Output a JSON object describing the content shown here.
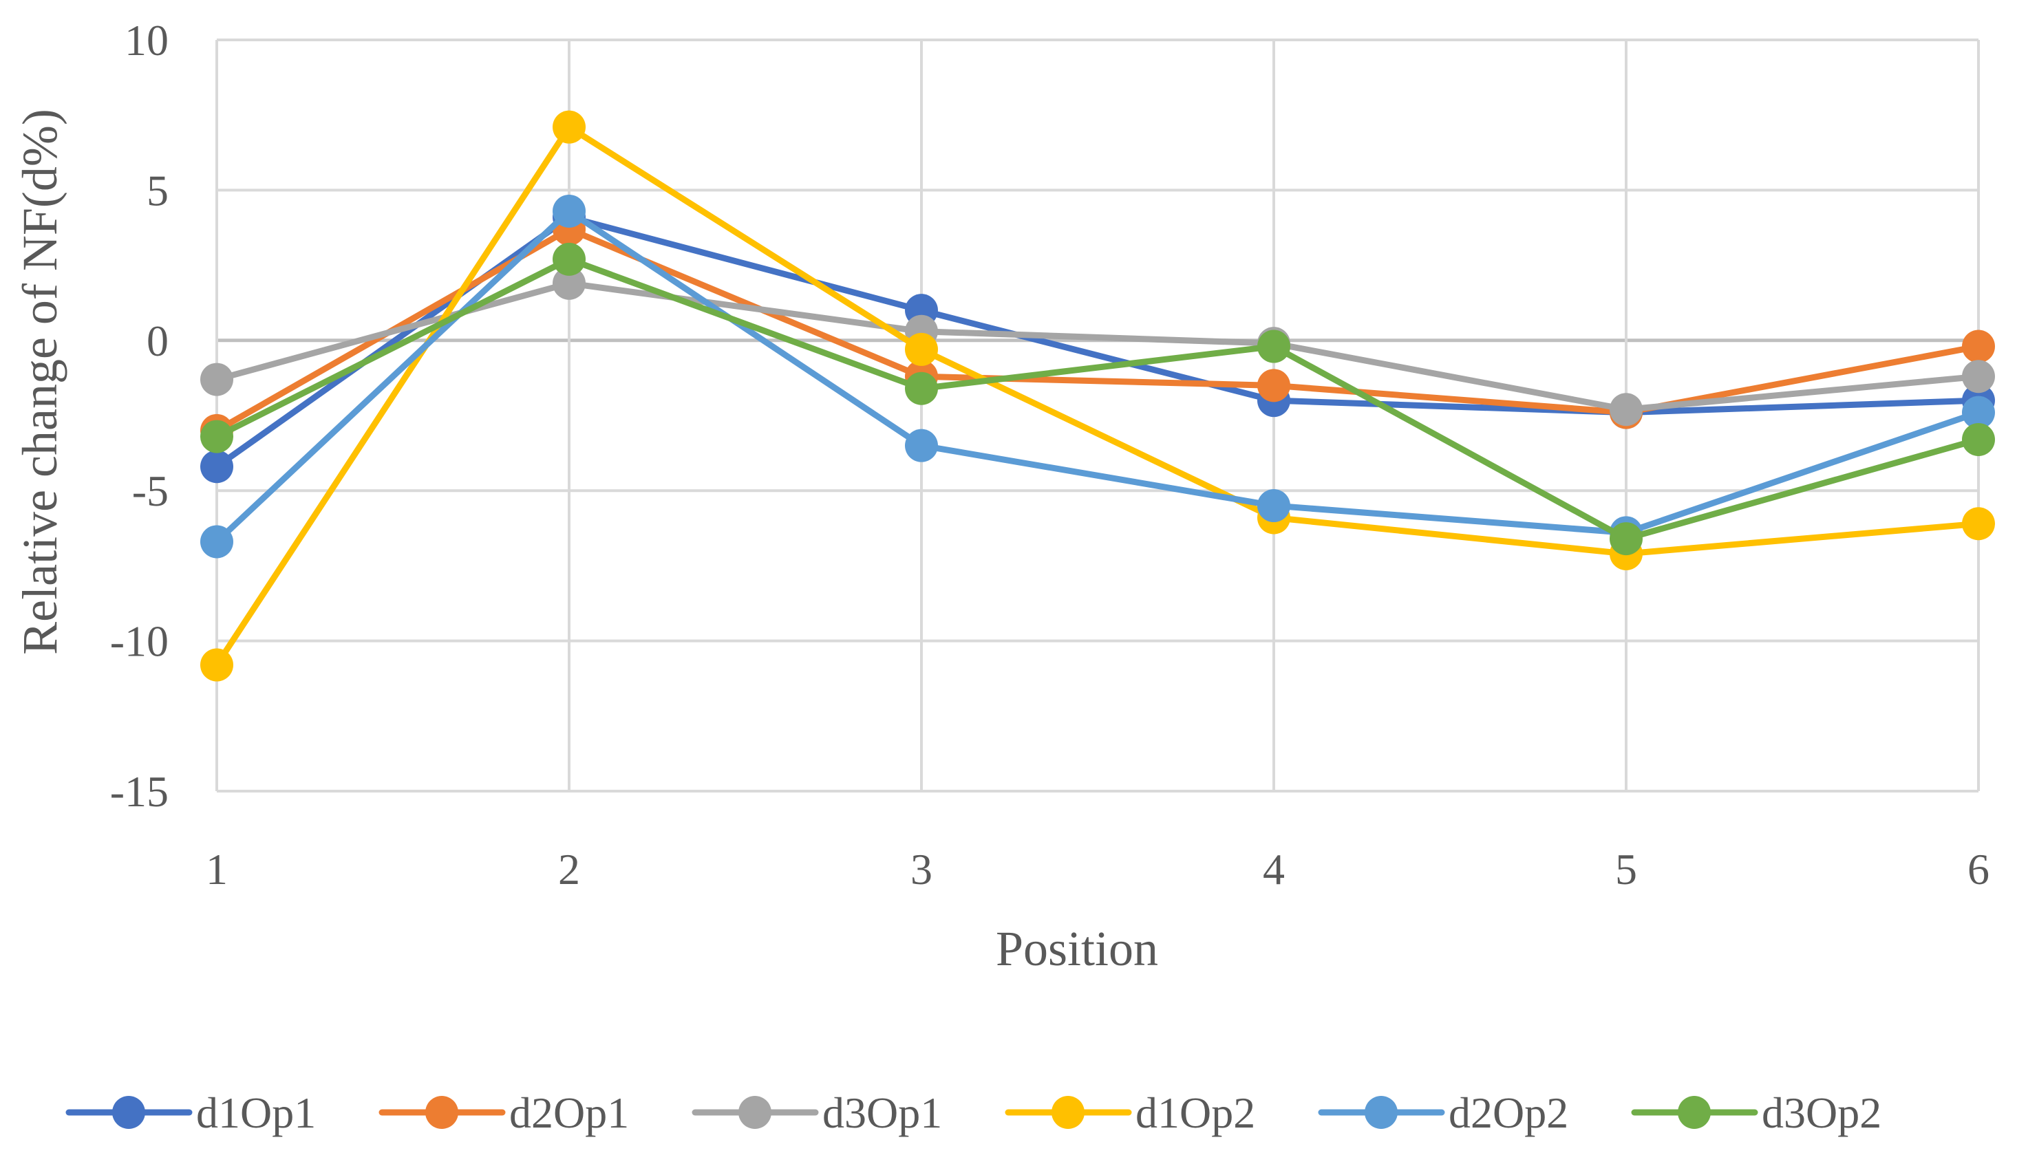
{
  "chart_data": {
    "type": "line",
    "title": "",
    "xlabel": "Position",
    "ylabel": "Relative change of NF(d%)",
    "x": [
      1,
      2,
      3,
      4,
      5,
      6
    ],
    "x_tick_labels": [
      "1",
      "2",
      "3",
      "4",
      "5",
      "6"
    ],
    "ylim": [
      -15,
      10
    ],
    "y_ticks": [
      10,
      5,
      0,
      -5,
      -10,
      -15
    ],
    "y_tick_labels": [
      "10",
      "5",
      "0",
      "-5",
      "-10",
      "-15"
    ],
    "grid": true,
    "legend_position": "bottom",
    "series": [
      {
        "name": "d1Op1",
        "color": "#4472C4",
        "values": [
          -4.2,
          4.1,
          1.0,
          -2.0,
          -2.4,
          -2.0
        ]
      },
      {
        "name": "d2Op1",
        "color": "#ED7D31",
        "values": [
          -3.0,
          3.7,
          -1.2,
          -1.5,
          -2.4,
          -0.2
        ]
      },
      {
        "name": "d3Op1",
        "color": "#A5A5A5",
        "values": [
          -1.3,
          1.9,
          0.3,
          -0.1,
          -2.3,
          -1.2
        ]
      },
      {
        "name": "d1Op2",
        "color": "#FFC000",
        "values": [
          -10.8,
          7.1,
          -0.3,
          -5.9,
          -7.1,
          -6.1
        ]
      },
      {
        "name": "d2Op2",
        "color": "#5B9BD5",
        "values": [
          -6.7,
          4.3,
          -3.5,
          -5.5,
          -6.4,
          -2.4
        ]
      },
      {
        "name": "d3Op2",
        "color": "#70AD47",
        "values": [
          -3.2,
          2.7,
          -1.6,
          -0.2,
          -6.6,
          -3.3
        ]
      }
    ]
  }
}
